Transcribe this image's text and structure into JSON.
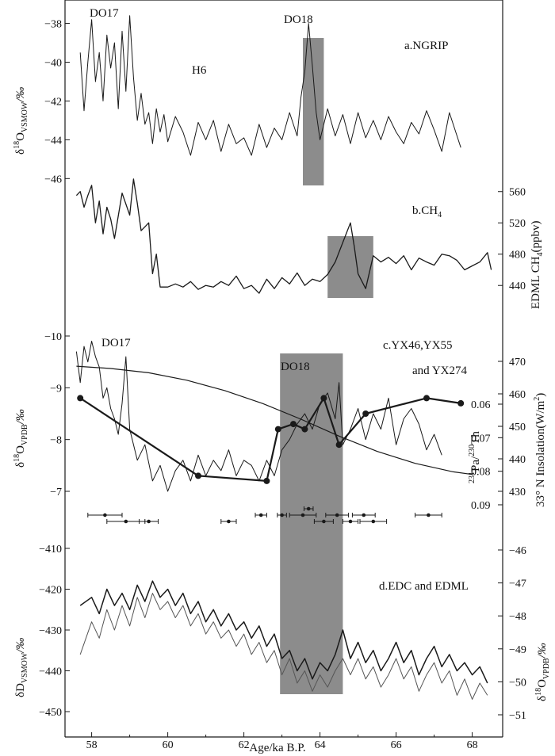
{
  "chart_data": [
    {
      "id": "a",
      "type": "line",
      "panel_label": "a.NGRIP",
      "ylabel_main": "δ",
      "ylabel_sup": "18",
      "ylabel_rest": "O",
      "ylabel_sub": "VSMOW",
      "ylabel_unit": "/‰",
      "axis_side": "left",
      "y_ticks": [
        -38,
        -40,
        -42,
        -44,
        -46
      ],
      "y_tick_labels": [
        "−38",
        "−40",
        "−42",
        "−44",
        "−46"
      ],
      "ylim": [
        -37.2,
        -46.6
      ],
      "annotations": [
        "DO17",
        "H6",
        "DO18"
      ],
      "shaded_x": [
        63.55,
        64.1
      ],
      "series": [
        {
          "x": [
            57.7,
            57.8,
            57.9,
            58.0,
            58.1,
            58.2,
            58.3,
            58.4,
            58.5,
            58.6,
            58.7,
            58.8,
            58.9,
            59.0,
            59.1,
            59.2,
            59.3,
            59.4,
            59.5,
            59.6,
            59.7,
            59.8,
            59.9,
            60.0,
            60.2,
            60.4,
            60.6,
            60.8,
            61.0,
            61.2,
            61.4,
            61.6,
            61.8,
            62.0,
            62.2,
            62.4,
            62.6,
            62.8,
            63.0,
            63.2,
            63.4,
            63.5,
            63.6,
            63.7,
            63.8,
            63.9,
            64.0,
            64.2,
            64.4,
            64.6,
            64.8,
            65.0,
            65.2,
            65.4,
            65.6,
            65.8,
            66.0,
            66.2,
            66.4,
            66.6,
            66.8,
            67.0,
            67.2,
            67.4,
            67.6,
            67.7
          ],
          "y": [
            -39.5,
            -42.5,
            -40.0,
            -37.8,
            -41.0,
            -39.5,
            -42.0,
            -38.6,
            -40.3,
            -39.0,
            -42.4,
            -38.4,
            -41.5,
            -37.6,
            -40.8,
            -43.0,
            -41.6,
            -43.2,
            -42.6,
            -44.2,
            -42.4,
            -43.6,
            -42.7,
            -44.1,
            -42.8,
            -43.6,
            -44.8,
            -43.1,
            -44.0,
            -43.0,
            -44.6,
            -43.2,
            -44.2,
            -43.9,
            -44.8,
            -43.2,
            -44.4,
            -43.4,
            -44.0,
            -42.6,
            -43.8,
            -41.8,
            -40.5,
            -38.0,
            -40.2,
            -42.6,
            -44.0,
            -42.4,
            -43.8,
            -42.7,
            -44.2,
            -42.6,
            -43.9,
            -43.0,
            -44.0,
            -42.8,
            -43.6,
            -44.2,
            -43.1,
            -43.7,
            -42.5,
            -43.5,
            -44.6,
            -42.6,
            -43.8,
            -44.4
          ]
        }
      ]
    },
    {
      "id": "b",
      "type": "line",
      "panel_label": "b.CH",
      "panel_label_sub": "4",
      "ylabel_right": "EDML CH",
      "ylabel_right_sub": "4",
      "ylabel_right_unit": "(ppbv)",
      "axis_side": "right",
      "y_ticks": [
        560,
        520,
        480,
        440
      ],
      "y_tick_labels": [
        "560",
        "520",
        "480",
        "440"
      ],
      "ylim": [
        422,
        580
      ],
      "shaded_x": [
        64.2,
        65.4
      ],
      "series": [
        {
          "x": [
            57.6,
            57.7,
            57.8,
            57.9,
            58.0,
            58.1,
            58.2,
            58.3,
            58.4,
            58.5,
            58.6,
            58.8,
            59.0,
            59.1,
            59.2,
            59.3,
            59.4,
            59.5,
            59.6,
            59.7,
            59.8,
            60.0,
            60.2,
            60.4,
            60.6,
            60.8,
            61.0,
            61.2,
            61.4,
            61.6,
            61.8,
            62.0,
            62.2,
            62.4,
            62.6,
            62.8,
            63.0,
            63.2,
            63.4,
            63.6,
            63.8,
            64.0,
            64.2,
            64.4,
            64.6,
            64.8,
            64.9,
            65.0,
            65.2,
            65.4,
            65.6,
            65.8,
            66.0,
            66.2,
            66.4,
            66.6,
            66.8,
            67.0,
            67.2,
            67.4,
            67.6,
            67.8,
            68.0,
            68.2,
            68.4,
            68.5
          ],
          "y": [
            555,
            560,
            540,
            555,
            568,
            520,
            548,
            506,
            540,
            525,
            500,
            558,
            530,
            576,
            545,
            510,
            515,
            520,
            455,
            480,
            438,
            438,
            442,
            438,
            445,
            435,
            440,
            438,
            445,
            440,
            452,
            436,
            440,
            430,
            448,
            436,
            450,
            442,
            456,
            440,
            448,
            445,
            454,
            470,
            495,
            520,
            490,
            455,
            436,
            478,
            470,
            476,
            468,
            478,
            460,
            475,
            470,
            466,
            480,
            478,
            472,
            460,
            465,
            470,
            482,
            460
          ]
        }
      ]
    },
    {
      "id": "c",
      "type": "line",
      "panel_label_1": "c.YX46,YX55",
      "panel_label_2": "and YX274",
      "ylabel_main": "δ",
      "ylabel_sup": "18",
      "ylabel_rest": "O",
      "ylabel_sub": "VPDB",
      "ylabel_unit": "/‰",
      "axis_side": "left",
      "y_ticks": [
        -10,
        -9,
        -8,
        -7
      ],
      "y_tick_labels": [
        "−10",
        "−9",
        "−8",
        "−7"
      ],
      "ylim": [
        -10.2,
        -6.8
      ],
      "right_axis_1": {
        "label": "33° N Insolation(W/m",
        "label_sup": "2",
        "label_end": ")",
        "ticks": [
          470,
          460,
          450,
          440,
          430
        ],
        "tick_labels": [
          "470",
          "460",
          "450",
          "440",
          "430"
        ]
      },
      "right_axis_2": {
        "label_sup1": "231",
        "label_mid": "Pa/",
        "label_sup2": "230",
        "label_end": "Th",
        "ticks": [
          0.06,
          0.07,
          0.08,
          0.09
        ],
        "tick_labels": [
          "0.06",
          "0.07",
          "0.08",
          "0.09"
        ]
      },
      "annotations": [
        "DO17",
        "DO18"
      ],
      "shaded_x": [
        62.95,
        64.6
      ],
      "series": [
        {
          "name": "",
          "x": [
            57.6,
            57.7,
            57.8,
            57.9,
            58.0,
            58.1,
            58.2,
            58.3,
            58.4,
            58.5,
            58.6,
            58.7,
            58.8,
            58.9,
            59.0,
            59.2,
            59.4,
            59.6,
            59.8,
            60.0,
            60.2,
            60.4,
            60.6,
            60.8,
            61.0,
            61.2,
            61.4,
            61.6,
            61.8,
            62.0,
            62.2,
            62.4,
            62.6,
            62.8,
            63.0,
            63.2,
            63.4,
            63.6,
            63.8,
            64.0,
            64.2,
            64.4,
            64.5,
            64.6,
            64.8,
            65.0,
            65.2,
            65.4,
            65.6,
            65.8,
            66.0,
            66.2,
            66.4,
            66.6,
            66.8,
            67.0,
            67.2
          ],
          "y": [
            -9.7,
            -9.1,
            -9.8,
            -9.5,
            -9.9,
            -9.6,
            -9.4,
            -8.8,
            -9.0,
            -8.6,
            -8.4,
            -8.1,
            -8.7,
            -9.6,
            -8.2,
            -7.6,
            -7.9,
            -7.2,
            -7.5,
            -7.0,
            -7.4,
            -7.6,
            -7.2,
            -7.7,
            -7.3,
            -7.6,
            -7.4,
            -7.8,
            -7.3,
            -7.6,
            -7.5,
            -7.2,
            -7.6,
            -7.3,
            -7.8,
            -8.0,
            -8.3,
            -8.5,
            -8.2,
            -8.7,
            -8.9,
            -8.4,
            -9.1,
            -7.9,
            -8.2,
            -8.6,
            -8.0,
            -8.5,
            -8.2,
            -8.8,
            -7.9,
            -8.4,
            -8.6,
            -8.3,
            -7.8,
            -8.1,
            -7.7
          ]
        },
        {
          "name": "",
          "x": [
            57.7,
            60.8,
            62.6,
            62.9,
            63.3,
            63.6,
            64.1,
            64.5,
            65.2,
            66.8,
            67.7
          ],
          "y": [
            -8.8,
            -7.3,
            -7.2,
            -8.2,
            -8.3,
            -8.2,
            -8.8,
            -7.9,
            -8.5,
            -8.8,
            -8.7
          ]
        },
        {
          "name": "",
          "type": "insolation",
          "x": [
            57.6,
            58.5,
            59.5,
            60.5,
            61.5,
            62.5,
            63.5,
            64.5,
            65.5,
            66.5,
            67.5,
            68.0
          ],
          "y": [
            468.5,
            467.8,
            466.5,
            464.2,
            461.0,
            457.0,
            452.2,
            447.0,
            442.3,
            438.6,
            436.0,
            435.2
          ]
        }
      ],
      "error_bars": [
        {
          "x": 58.35,
          "err": 0.45,
          "row": 0
        },
        {
          "x": 58.9,
          "err": 0.5,
          "row": 1
        },
        {
          "x": 59.5,
          "err": 0.25,
          "row": 1
        },
        {
          "x": 61.6,
          "err": 0.2,
          "row": 1
        },
        {
          "x": 62.45,
          "err": 0.15,
          "row": 0
        },
        {
          "x": 63.0,
          "err": 0.12,
          "row": 0
        },
        {
          "x": 63.55,
          "err": 0.35,
          "row": 0
        },
        {
          "x": 63.7,
          "err": 0.12,
          "row": -1
        },
        {
          "x": 64.45,
          "err": 0.3,
          "row": 0
        },
        {
          "x": 64.1,
          "err": 0.25,
          "row": 1
        },
        {
          "x": 64.8,
          "err": 0.2,
          "row": 1
        },
        {
          "x": 65.15,
          "err": 0.3,
          "row": 0
        },
        {
          "x": 65.4,
          "err": 0.35,
          "row": 1
        },
        {
          "x": 66.85,
          "err": 0.35,
          "row": 0
        }
      ]
    },
    {
      "id": "d",
      "type": "line",
      "panel_label": "d.EDC and EDML",
      "ylabel_main": "δD",
      "ylabel_sub": "VSMOW",
      "ylabel_unit": "/‰",
      "axis_side": "left",
      "y_ticks": [
        -410,
        -420,
        -430,
        -440,
        -450
      ],
      "y_tick_labels": [
        "−410",
        "−420",
        "−430",
        "−440",
        "−450"
      ],
      "ylim": [
        -406,
        -454
      ],
      "right_axis": {
        "label_main": "δ",
        "label_sup": "18",
        "label_rest": "O",
        "label_sub": "VPDB",
        "label_unit": "/‰",
        "ticks": [
          -46,
          -47,
          -48,
          -49,
          -50,
          -51
        ],
        "tick_labels": [
          "−46",
          "−47",
          "−48",
          "−49",
          "−50",
          "−51"
        ]
      },
      "shaded_x": [
        62.95,
        64.6
      ],
      "series": [
        {
          "name": "",
          "x": [
            57.7,
            58.0,
            58.2,
            58.4,
            58.6,
            58.8,
            59.0,
            59.2,
            59.4,
            59.6,
            59.8,
            60.0,
            60.2,
            60.4,
            60.6,
            60.8,
            61.0,
            61.2,
            61.4,
            61.6,
            61.8,
            62.0,
            62.2,
            62.4,
            62.6,
            62.8,
            63.0,
            63.2,
            63.4,
            63.6,
            63.8,
            64.0,
            64.2,
            64.4,
            64.6,
            64.8,
            65.0,
            65.2,
            65.4,
            65.6,
            65.8,
            66.0,
            66.2,
            66.4,
            66.6,
            66.8,
            67.0,
            67.2,
            67.4,
            67.6,
            67.8,
            68.0,
            68.2,
            68.4
          ],
          "y": [
            -424,
            -422,
            -426,
            -420,
            -424,
            -421,
            -425,
            -419,
            -423,
            -418,
            -422,
            -420,
            -424,
            -421,
            -426,
            -423,
            -428,
            -425,
            -429,
            -426,
            -430,
            -428,
            -432,
            -429,
            -434,
            -431,
            -437,
            -435,
            -440,
            -437,
            -442,
            -438,
            -440,
            -436,
            -430,
            -437,
            -433,
            -438,
            -435,
            -440,
            -437,
            -433,
            -438,
            -435,
            -441,
            -437,
            -434,
            -439,
            -436,
            -440,
            -438,
            -441,
            -439,
            -443
          ]
        },
        {
          "name": "",
          "x": [
            57.7,
            58.0,
            58.2,
            58.4,
            58.6,
            58.8,
            59.0,
            59.2,
            59.4,
            59.6,
            59.8,
            60.0,
            60.2,
            60.4,
            60.6,
            60.8,
            61.0,
            61.2,
            61.4,
            61.6,
            61.8,
            62.0,
            62.2,
            62.4,
            62.6,
            62.8,
            63.0,
            63.2,
            63.4,
            63.6,
            63.8,
            64.0,
            64.2,
            64.4,
            64.6,
            64.8,
            65.0,
            65.2,
            65.4,
            65.6,
            65.8,
            66.0,
            66.2,
            66.4,
            66.6,
            66.8,
            67.0,
            67.2,
            67.4,
            67.6,
            67.8,
            68.0,
            68.2,
            68.4
          ],
          "y": [
            -436,
            -428,
            -432,
            -425,
            -430,
            -424,
            -429,
            -422,
            -427,
            -421,
            -425,
            -423,
            -427,
            -424,
            -429,
            -426,
            -431,
            -428,
            -432,
            -430,
            -434,
            -431,
            -436,
            -433,
            -438,
            -435,
            -441,
            -437,
            -443,
            -440,
            -445,
            -441,
            -444,
            -440,
            -437,
            -441,
            -437,
            -442,
            -439,
            -444,
            -441,
            -437,
            -442,
            -439,
            -445,
            -441,
            -438,
            -443,
            -440,
            -446,
            -442,
            -447,
            -443,
            -446
          ]
        }
      ]
    }
  ],
  "x_axis": {
    "ticks": [
      58,
      60,
      62,
      64,
      66,
      68
    ],
    "tick_labels": [
      "58",
      "60",
      "62",
      "64",
      "66",
      "68"
    ],
    "xlim": [
      57.3,
      68.8
    ],
    "label": "Age/ka B.P."
  },
  "colors": {
    "line": "#1a1a1a",
    "line_gray": "#555555",
    "shade": "#8c8c8c"
  }
}
